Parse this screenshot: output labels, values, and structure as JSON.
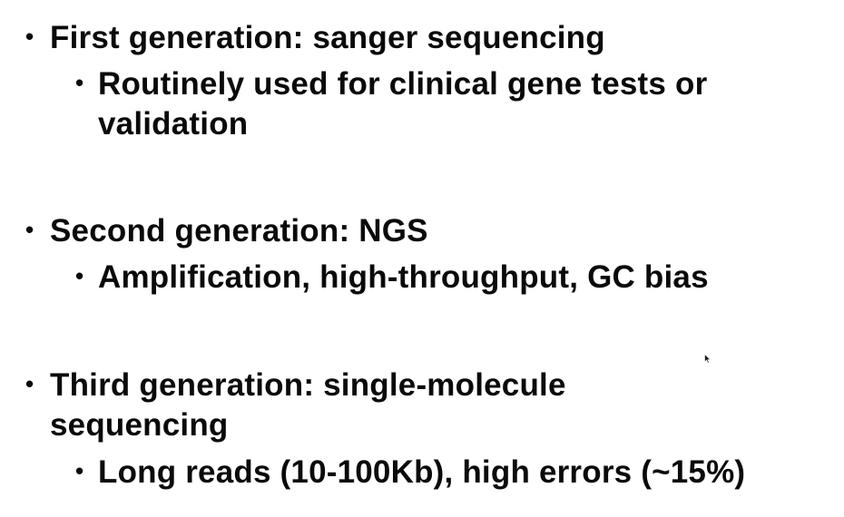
{
  "slide": {
    "bullets": [
      {
        "text": "First generation: sanger sequencing",
        "sub": "Routinely used for clinical gene tests or validation"
      },
      {
        "text": "Second generation: NGS",
        "sub": "Amplification, high-throughput, GC bias"
      },
      {
        "text": "Third generation: single-molecule sequencing",
        "sub": "Long reads (10-100Kb), high errors (~15%)"
      }
    ]
  },
  "icons": {
    "bullet": "bullet-dot-icon",
    "cursor": "mouse-pointer-icon"
  }
}
